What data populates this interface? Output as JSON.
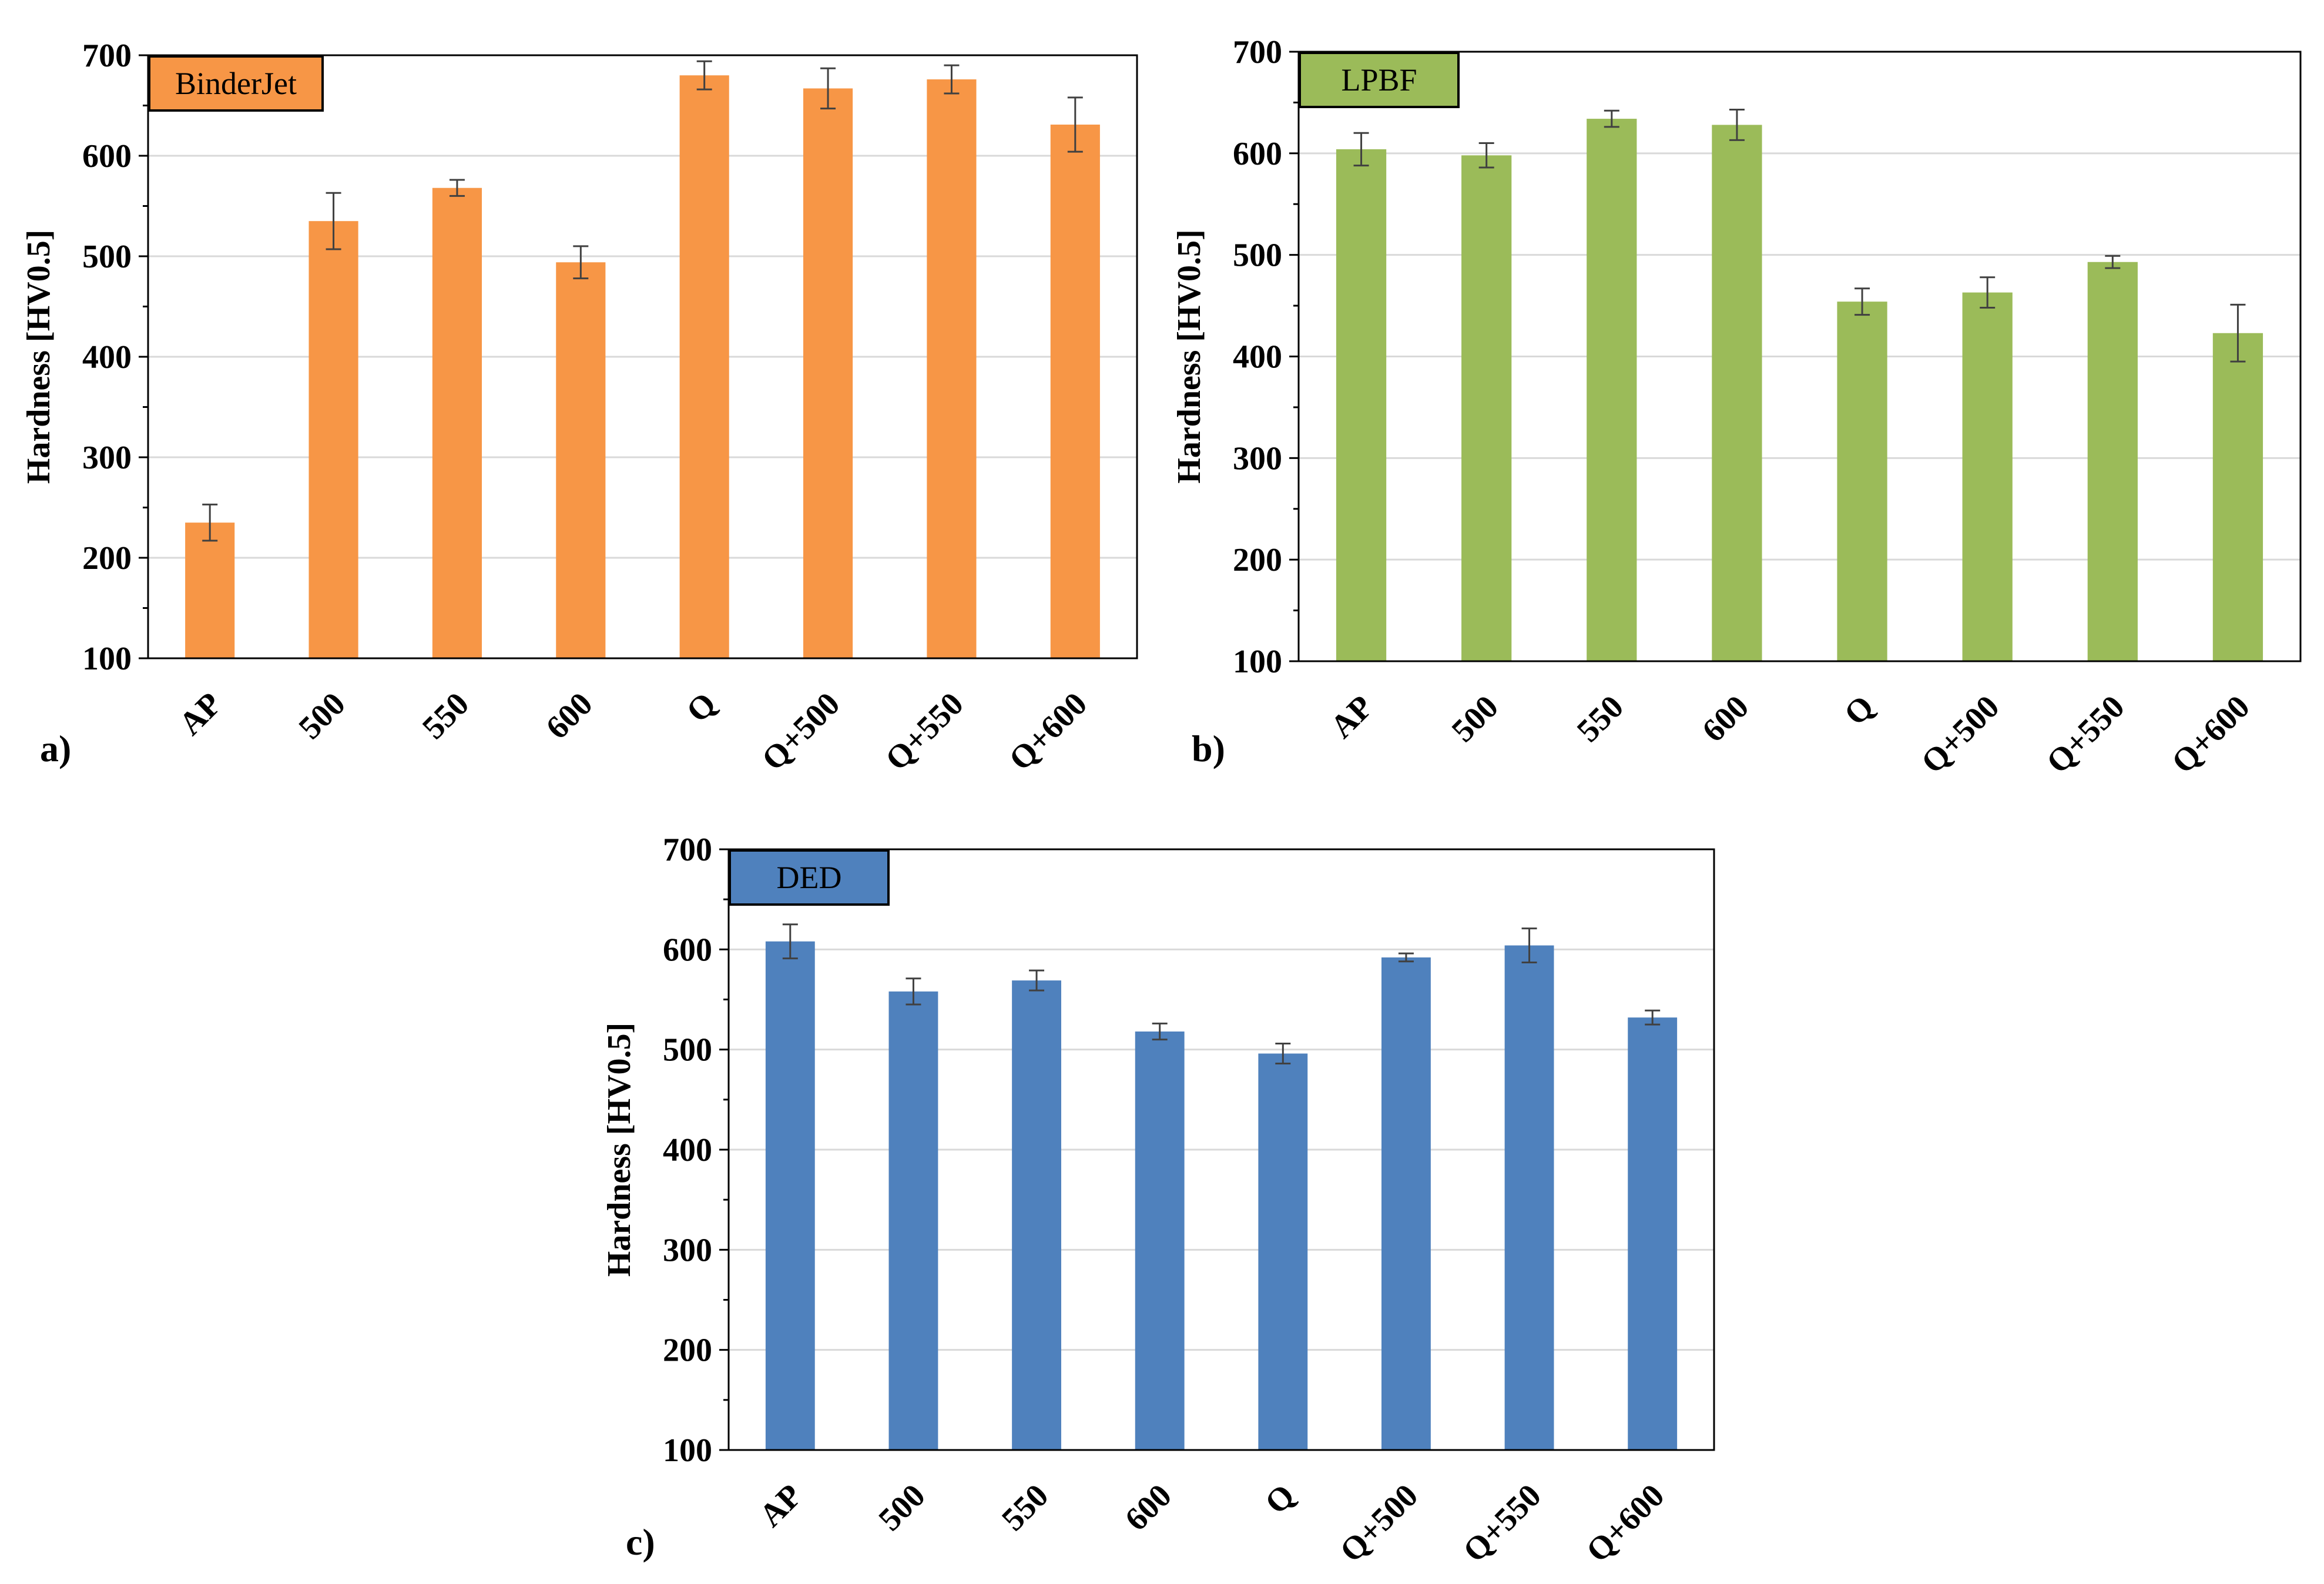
{
  "chart_data": [
    {
      "type": "bar",
      "panel_label": "a)",
      "legend": "BinderJet",
      "color": "#F79646",
      "ylabel": "Hardness [HV0.5]",
      "ylim": [
        100,
        700
      ],
      "yticks": [
        100,
        200,
        300,
        400,
        500,
        600,
        700
      ],
      "categories": [
        "AP",
        "500",
        "550",
        "600",
        "Q",
        "Q+500",
        "Q+550",
        "Q+600"
      ],
      "values": [
        235,
        535,
        568,
        494,
        680,
        667,
        676,
        631
      ],
      "errors": [
        18,
        28,
        8,
        16,
        14,
        20,
        14,
        27
      ]
    },
    {
      "type": "bar",
      "panel_label": "b)",
      "legend": "LPBF",
      "color": "#9BBB59",
      "ylabel": "Hardness [HV0.5]",
      "ylim": [
        100,
        700
      ],
      "yticks": [
        100,
        200,
        300,
        400,
        500,
        600,
        700
      ],
      "categories": [
        "AP",
        "500",
        "550",
        "600",
        "Q",
        "Q+500",
        "Q+550",
        "Q+600"
      ],
      "values": [
        604,
        598,
        634,
        628,
        454,
        463,
        493,
        423
      ],
      "errors": [
        16,
        12,
        8,
        15,
        13,
        15,
        6,
        28
      ]
    },
    {
      "type": "bar",
      "panel_label": "c)",
      "legend": "DED",
      "color": "#4F81BD",
      "ylabel": "Hardness [HV0.5]",
      "ylim": [
        100,
        700
      ],
      "yticks": [
        100,
        200,
        300,
        400,
        500,
        600,
        700
      ],
      "categories": [
        "AP",
        "500",
        "550",
        "600",
        "Q",
        "Q+500",
        "Q+550",
        "Q+600"
      ],
      "values": [
        608,
        558,
        569,
        518,
        496,
        592,
        604,
        532
      ],
      "errors": [
        17,
        13,
        10,
        8,
        10,
        4,
        17,
        7
      ]
    }
  ]
}
